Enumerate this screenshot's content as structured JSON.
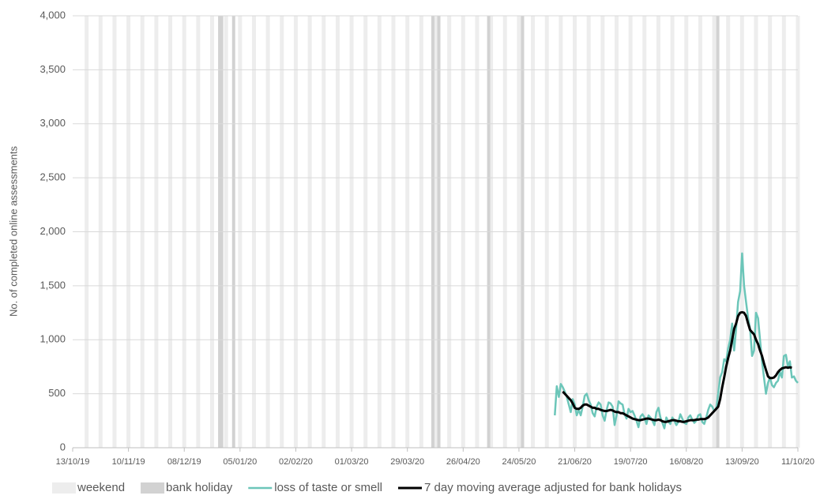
{
  "chart_data": {
    "type": "line",
    "ylabel": "No. of completed online assessments",
    "ylim": [
      0,
      4000
    ],
    "yticks": [
      0,
      500,
      {
        "value": 1000,
        "label": "1,000"
      },
      {
        "value": 1500,
        "label": "1,500"
      },
      {
        "value": 2000,
        "label": "2,000"
      },
      {
        "value": 2500,
        "label": "2,500"
      },
      {
        "value": 3000,
        "label": "3,000"
      },
      {
        "value": 3500,
        "label": "3,500"
      },
      {
        "value": 4000,
        "label": "4,000"
      }
    ],
    "xlim": [
      "13/10/19",
      "11/10/20"
    ],
    "xticks": [
      "13/10/19",
      "10/11/19",
      "08/12/19",
      "05/01/20",
      "02/02/20",
      "01/03/20",
      "29/03/20",
      "26/04/20",
      "24/05/20",
      "21/06/20",
      "19/07/20",
      "16/08/20",
      "13/09/20",
      "11/10/20"
    ],
    "grid": true,
    "legend": "bottom",
    "bands": [
      {
        "name": "weekend",
        "color": "#ededed",
        "x": [
          "19/10/19",
          "26/10/19",
          "02/11/19",
          "09/11/19",
          "16/11/19",
          "23/11/19",
          "30/11/19",
          "07/12/19",
          "14/12/19",
          "21/12/19",
          "28/12/19",
          "04/01/20",
          "11/01/20",
          "18/01/20",
          "25/01/20",
          "01/02/20",
          "08/02/20",
          "15/02/20",
          "22/02/20",
          "29/02/20",
          "07/03/20",
          "14/03/20",
          "21/03/20",
          "28/03/20",
          "04/04/20",
          "11/04/20",
          "18/04/20",
          "25/04/20",
          "02/05/20",
          "09/05/20",
          "16/05/20",
          "23/05/20",
          "30/05/20",
          "06/06/20",
          "13/06/20",
          "20/06/20",
          "27/06/20",
          "04/07/20",
          "11/07/20",
          "18/07/20",
          "25/07/20",
          "01/08/20",
          "08/08/20",
          "15/08/20",
          "22/08/20",
          "29/08/20",
          "05/09/20",
          "12/09/20",
          "19/09/20",
          "26/09/20",
          "03/10/20",
          "10/10/20"
        ]
      },
      {
        "name": "bank holiday",
        "color": "#d2d2d2",
        "x": [
          "25/12/19",
          "26/12/19",
          "01/01/20",
          "10/04/20",
          "13/04/20",
          "08/05/20",
          "25/05/20",
          "31/08/20"
        ]
      }
    ],
    "x": [
      "11/06/20",
      "12/06/20",
      "13/06/20",
      "14/06/20",
      "15/06/20",
      "16/06/20",
      "17/06/20",
      "18/06/20",
      "19/06/20",
      "20/06/20",
      "21/06/20",
      "22/06/20",
      "23/06/20",
      "24/06/20",
      "25/06/20",
      "26/06/20",
      "27/06/20",
      "28/06/20",
      "29/06/20",
      "30/06/20",
      "01/07/20",
      "02/07/20",
      "03/07/20",
      "04/07/20",
      "05/07/20",
      "06/07/20",
      "07/07/20",
      "08/07/20",
      "09/07/20",
      "10/07/20",
      "11/07/20",
      "12/07/20",
      "13/07/20",
      "14/07/20",
      "15/07/20",
      "16/07/20",
      "17/07/20",
      "18/07/20",
      "19/07/20",
      "20/07/20",
      "21/07/20",
      "22/07/20",
      "23/07/20",
      "24/07/20",
      "25/07/20",
      "26/07/20",
      "27/07/20",
      "28/07/20",
      "29/07/20",
      "30/07/20",
      "31/07/20",
      "01/08/20",
      "02/08/20",
      "03/08/20",
      "04/08/20",
      "05/08/20",
      "06/08/20",
      "07/08/20",
      "08/08/20",
      "09/08/20",
      "10/08/20",
      "11/08/20",
      "12/08/20",
      "13/08/20",
      "14/08/20",
      "15/08/20",
      "16/08/20",
      "17/08/20",
      "18/08/20",
      "19/08/20",
      "20/08/20",
      "21/08/20",
      "22/08/20",
      "23/08/20",
      "24/08/20",
      "25/08/20",
      "26/08/20",
      "27/08/20",
      "28/08/20",
      "29/08/20",
      "30/08/20",
      "31/08/20",
      "01/09/20",
      "02/09/20",
      "03/09/20",
      "04/09/20",
      "05/09/20",
      "06/09/20",
      "07/09/20",
      "08/09/20",
      "09/09/20",
      "10/09/20",
      "11/09/20",
      "12/09/20",
      "13/09/20",
      "14/09/20",
      "15/09/20",
      "16/09/20",
      "17/09/20",
      "18/09/20",
      "19/09/20",
      "20/09/20",
      "21/09/20",
      "22/09/20",
      "23/09/20",
      "24/09/20",
      "25/09/20",
      "26/09/20",
      "27/09/20",
      "28/09/20",
      "29/09/20",
      "30/09/20",
      "01/10/20",
      "02/10/20",
      "03/10/20",
      "04/10/20",
      "05/10/20",
      "06/10/20",
      "07/10/20",
      "08/10/20",
      "09/10/20",
      "10/10/20",
      "11/10/20"
    ],
    "series": [
      {
        "name": "loss of taste or smell",
        "color": "#6cc6b9",
        "width": 2.5,
        "values": [
          300,
          570,
          470,
          590,
          560,
          520,
          470,
          400,
          330,
          450,
          400,
          300,
          350,
          300,
          380,
          480,
          500,
          440,
          400,
          320,
          290,
          380,
          420,
          400,
          300,
          250,
          350,
          420,
          410,
          380,
          210,
          300,
          430,
          410,
          400,
          310,
          270,
          360,
          330,
          340,
          300,
          250,
          190,
          290,
          310,
          280,
          220,
          300,
          280,
          250,
          210,
          330,
          370,
          280,
          230,
          180,
          280,
          240,
          220,
          280,
          250,
          210,
          240,
          310,
          270,
          230,
          220,
          280,
          300,
          260,
          230,
          250,
          300,
          310,
          240,
          220,
          280,
          350,
          400,
          380,
          340,
          360,
          500,
          650,
          700,
          820,
          800,
          920,
          1000,
          1150,
          900,
          1100,
          1350,
          1450,
          1800,
          1500,
          1350,
          1200,
          1100,
          850,
          900,
          1250,
          1200,
          1000,
          800,
          650,
          500,
          600,
          650,
          580,
          560,
          600,
          620,
          700,
          650,
          850,
          860,
          750,
          800,
          650,
          660,
          620,
          600
        ]
      },
      {
        "name": "7 day moving average adjusted for bank holidays",
        "color": "#000000",
        "width": 3,
        "values": [
          null,
          null,
          null,
          null,
          520,
          500,
          480,
          460,
          440,
          410,
          370,
          360,
          360,
          370,
          390,
          400,
          400,
          390,
          380,
          370,
          370,
          360,
          360,
          350,
          345,
          340,
          340,
          345,
          350,
          345,
          335,
          330,
          330,
          320,
          320,
          310,
          300,
          290,
          280,
          270,
          265,
          260,
          255,
          255,
          260,
          265,
          270,
          270,
          265,
          260,
          255,
          255,
          260,
          255,
          245,
          240,
          240,
          245,
          250,
          255,
          255,
          250,
          245,
          245,
          240,
          240,
          245,
          250,
          255,
          255,
          255,
          260,
          260,
          265,
          265,
          265,
          270,
          280,
          300,
          320,
          340,
          360,
          380,
          450,
          560,
          650,
          750,
          830,
          900,
          1000,
          1100,
          1150,
          1220,
          1250,
          1255,
          1250,
          1220,
          1150,
          1090,
          1070,
          1050,
          1000,
          960,
          900,
          850,
          780,
          720,
          660,
          645,
          645,
          650,
          670,
          700,
          720,
          735,
          740,
          745,
          740,
          745,
          740,
          null,
          null,
          null
        ]
      }
    ]
  }
}
